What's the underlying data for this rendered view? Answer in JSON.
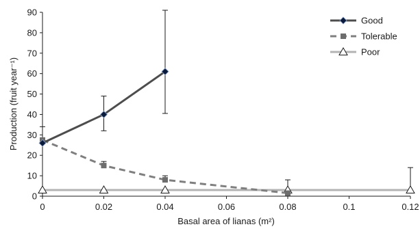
{
  "chart_data": {
    "type": "line",
    "xlabel": "Basal area of lianas (m²)",
    "ylabel": "Production (fruit year⁻¹)",
    "xlim": [
      0,
      0.12
    ],
    "ylim": [
      0,
      90
    ],
    "x_ticks": [
      0,
      0.02,
      0.04,
      0.06,
      0.08,
      0.1,
      0.12
    ],
    "x_tick_labels": [
      "0",
      "0.02",
      "0.04",
      "0.06",
      "0.08",
      "0.1",
      "0.12"
    ],
    "y_ticks": [
      0,
      10,
      20,
      30,
      40,
      50,
      60,
      70,
      80,
      90
    ],
    "y_tick_labels": [
      "0",
      "10",
      "20",
      "30",
      "40",
      "50",
      "60",
      "70",
      "80",
      "90"
    ],
    "grid": false,
    "legend_position": "top-right",
    "series": [
      {
        "name": "Good",
        "color": "#4d4d4d",
        "line_style": "solid",
        "marker": "diamond",
        "marker_color": "#0a1a3a",
        "x": [
          0,
          0.02,
          0.04
        ],
        "y": [
          26,
          40,
          61
        ],
        "error_low": [
          null,
          32,
          40.5
        ],
        "error_high": [
          null,
          49,
          91
        ]
      },
      {
        "name": "Tolerable",
        "color": "#7f7f7f",
        "line_style": "dashed",
        "marker": "square",
        "marker_color": "#6d6d6d",
        "x": [
          0,
          0.02,
          0.04,
          0.08
        ],
        "y": [
          27.5,
          15,
          8,
          1.5
        ],
        "error_low": [
          null,
          null,
          null,
          null
        ],
        "error_high": [
          34,
          17,
          10,
          null
        ]
      },
      {
        "name": "Poor",
        "color": "#b3b3b3",
        "line_style": "solid",
        "marker": "triangle",
        "marker_color": "#ffffff",
        "x": [
          0,
          0.02,
          0.04,
          0.08,
          0.12
        ],
        "y": [
          3,
          3,
          3,
          3,
          3
        ],
        "error_low": [
          null,
          null,
          null,
          null,
          null
        ],
        "error_high": [
          null,
          null,
          null,
          8,
          14
        ]
      }
    ]
  }
}
